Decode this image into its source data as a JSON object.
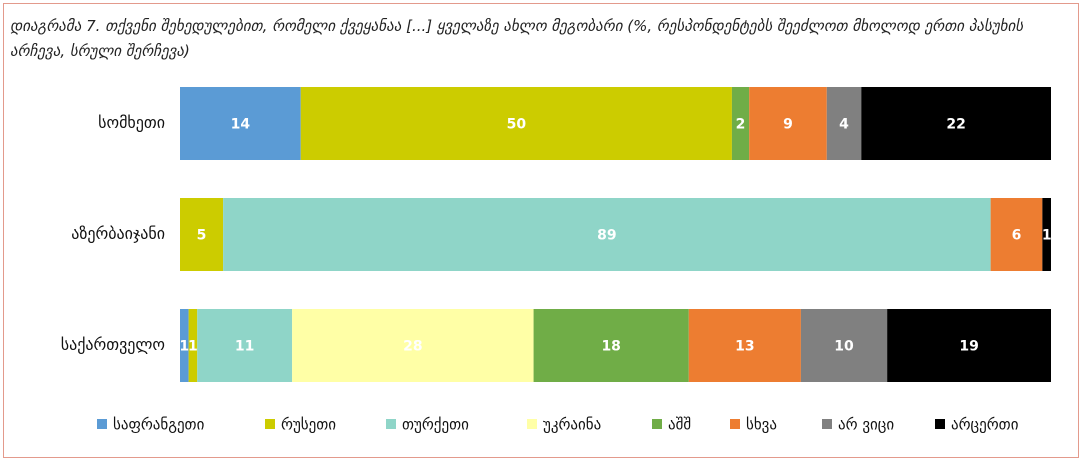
{
  "chart_data": {
    "type": "stacked-bar-horizontal",
    "title": "დიაგრამა 7. თქვენი შეხედულებით, რომელი ქვეყანაა [...] ყველაზე ახლო მეგობარი (%, რესპონდენტებს შეეძლოთ მხოლოდ ერთი პასუხის არჩევა, სრული შერჩევა)",
    "categories": [
      "სომხეთი",
      "აზერბაიჯანი",
      "საქართველო"
    ],
    "xlim": [
      0,
      101
    ],
    "legend": "bottom",
    "series": [
      {
        "name": "საფრანგეთი",
        "color": "#5b9bd5",
        "values": [
          14,
          null,
          1
        ]
      },
      {
        "name": "რუსეთი",
        "color": "#cccc00",
        "values": [
          50,
          5,
          1
        ]
      },
      {
        "name": "თურქეთი",
        "color": "#8fd5c8",
        "values": [
          null,
          89,
          11
        ]
      },
      {
        "name": "უკრაინა",
        "color": "#ffffa6",
        "values": [
          null,
          null,
          28
        ]
      },
      {
        "name": "აშშ",
        "color": "#70ad47",
        "values": [
          2,
          null,
          18
        ]
      },
      {
        "name": "სხვა",
        "color": "#ed7d31",
        "values": [
          9,
          6,
          13
        ]
      },
      {
        "name": "არ ვიცი",
        "color": "#808080",
        "values": [
          4,
          null,
          10
        ]
      },
      {
        "name": "არცერთი",
        "color": "#000000",
        "values": [
          22,
          1,
          19
        ]
      }
    ]
  }
}
